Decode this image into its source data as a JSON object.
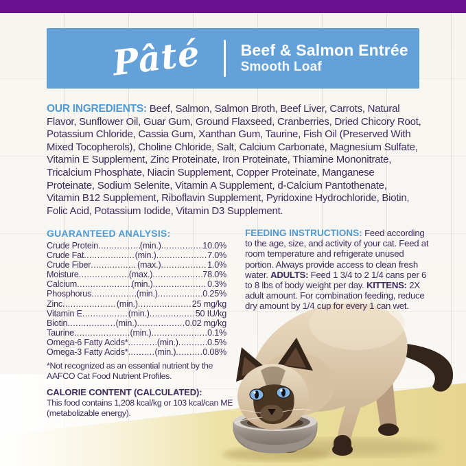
{
  "colors": {
    "brand_purple": "#6a1191",
    "banner_blue": "#64a1d8",
    "heading_blue": "#4f9ad2",
    "body_text": "#3e2a5c",
    "floor_yellow": "#ead898"
  },
  "banner": {
    "script_word": "Pâté",
    "title": "Beef & Salmon Entrée",
    "subtitle": "Smooth Loaf"
  },
  "ingredients": {
    "heading": "OUR INGREDIENTS:",
    "text": "Beef, Salmon, Salmon Broth, Beef Liver, Carrots, Natural Flavor, Sunflower Oil, Guar Gum, Ground Flaxseed, Cranberries, Dried Chicory Root, Potassium Chloride, Cassia Gum, Xanthan Gum, Taurine, Fish Oil (Preserved With Mixed Tocopherols), Choline Chloride, Salt, Calcium Carbonate, Magnesium Sulfate, Vitamin E Supplement, Zinc Proteinate, Iron Proteinate, Thiamine Mononitrate, Tricalcium Phosphate, Niacin Supplement, Copper Proteinate, Manganese Proteinate, Sodium Selenite, Vitamin A Supplement, d-Calcium Pantothenate, Vitamin B12 Supplement, Riboflavin Supplement, Pyridoxine Hydrochloride, Biotin, Folic Acid, Potassium Iodide, Vitamin D3 Supplement."
  },
  "guaranteed_analysis": {
    "heading": "GUARANTEED ANALYSIS:",
    "rows": [
      {
        "label": "Crude Protein",
        "basis": "(min.)",
        "value": "10.0%"
      },
      {
        "label": "Crude Fat",
        "basis": "(min.)",
        "value": "7.0%"
      },
      {
        "label": "Crude Fiber",
        "basis": "(max.)",
        "value": "1.0%"
      },
      {
        "label": "Moisture",
        "basis": "(max.)",
        "value": "78.0%"
      },
      {
        "label": "Calcium",
        "basis": "(min.)",
        "value": "0.3%"
      },
      {
        "label": "Phosphorus",
        "basis": "(min.)",
        "value": "0.25%"
      },
      {
        "label": "Zinc",
        "basis": "(min.)",
        "value": "25 mg/kg"
      },
      {
        "label": "Vitamin E",
        "basis": "(min.)",
        "value": "50 IU/kg"
      },
      {
        "label": "Biotin",
        "basis": "(min.)",
        "value": "0.02 mg/kg"
      },
      {
        "label": "Taurine",
        "basis": "(min.)",
        "value": "0.1%"
      },
      {
        "label": "Omega-6 Fatty Acids*",
        "basis": "(min.)",
        "value": "0.5%"
      },
      {
        "label": "Omega-3 Fatty Acids*",
        "basis": "(min.)",
        "value": "0.08%"
      }
    ],
    "footnote": "*Not recognized as an essential nutrient by the AAFCO Cat Food Nutrient Profiles."
  },
  "calorie_content": {
    "heading": "CALORIE CONTENT (CALCULATED):",
    "text": "This food contains 1,208 kcal/kg or 103 kcal/can ME (metabolizable energy)."
  },
  "feeding_instructions": {
    "heading": "FEEDING INSTRUCTIONS:",
    "intro": "Feed according to the age, size, and activity of your cat. Feed at room temperature and refrigerate unused portion. Always provide access to clean fresh water.",
    "adults_label": "ADULTS:",
    "adults_text": "Feed 1 3/4 to 2 1/4 cans per 6 to 8 lbs of body weight per day.",
    "kittens_label": "KITTENS:",
    "kittens_text": "2X adult amount. For combination feeding, reduce dry amount by 1/4 cup for every 1 can wet."
  },
  "photo": {
    "alt": "Siamese kitten eating from a stainless steel bowl"
  }
}
